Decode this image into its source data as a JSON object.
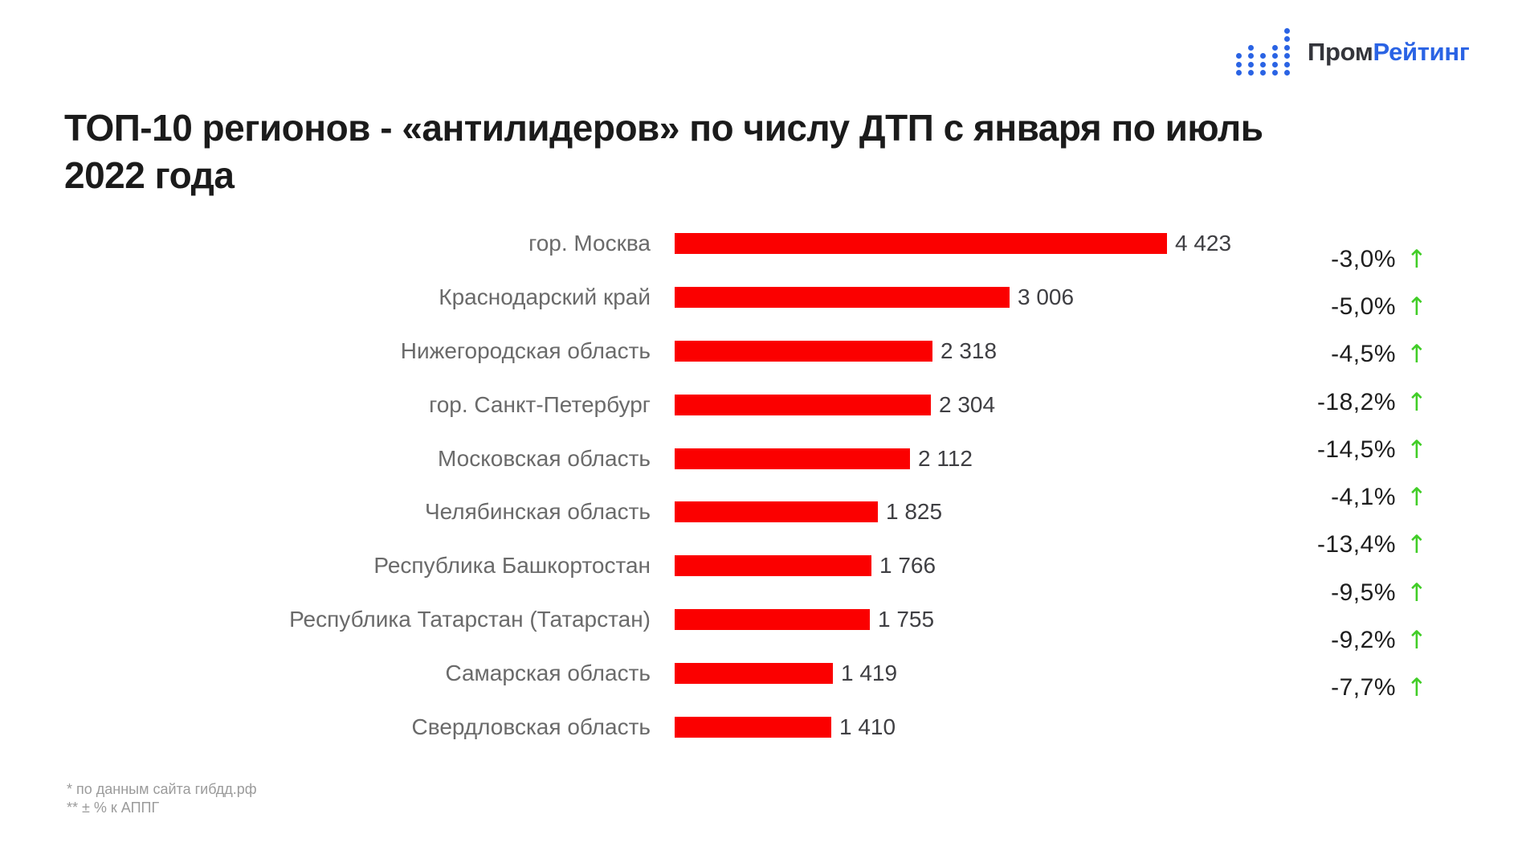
{
  "header": {
    "logo": {
      "text_primary": "Пром",
      "text_accent": "Рейтинг",
      "dot_columns": [
        3,
        4,
        3,
        4,
        6
      ]
    }
  },
  "colors": {
    "bar_red": "#fb0000",
    "arrow_green": "#41cd27",
    "logo_blue": "#2a63e4",
    "title_text": "#1b1b1b"
  },
  "chart_data": {
    "type": "bar",
    "orientation": "horizontal",
    "title": "ТОП-10 регионов - «антилидеров» по числу ДТП с января по июль 2022 года",
    "xlabel": "",
    "ylabel": "",
    "grid": false,
    "legend": false,
    "max_value": 4423,
    "arrow_glyph": "↑",
    "arrow_meaning": "increase indicator",
    "categories": [
      "гор. Москва",
      "Краснодарский край",
      "Нижегородская область",
      "гор. Санкт-Петербург",
      "Московская область",
      "Челябинская область",
      "Республика Башкортостан",
      "Республика Татарстан (Татарстан)",
      "Самарская область",
      "Свердловская область"
    ],
    "values": [
      4423,
      3006,
      2318,
      2304,
      2112,
      1825,
      1766,
      1755,
      1419,
      1410
    ],
    "value_labels": [
      "4 423",
      "3 006",
      "2 318",
      "2 304",
      "2 112",
      "1 825",
      "1 766",
      "1 755",
      "1 419",
      "1 410"
    ],
    "changes": [
      "-3,0%",
      "-5,0%",
      "-4,5%",
      "-18,2%",
      "-14,5%",
      "-4,1%",
      "-13,4%",
      "-9,5%",
      "-9,2%",
      "-7,7%"
    ]
  },
  "footnotes": {
    "line1": "* по данным сайта гибдд.рф",
    "line2": "** ± % к АППГ"
  }
}
